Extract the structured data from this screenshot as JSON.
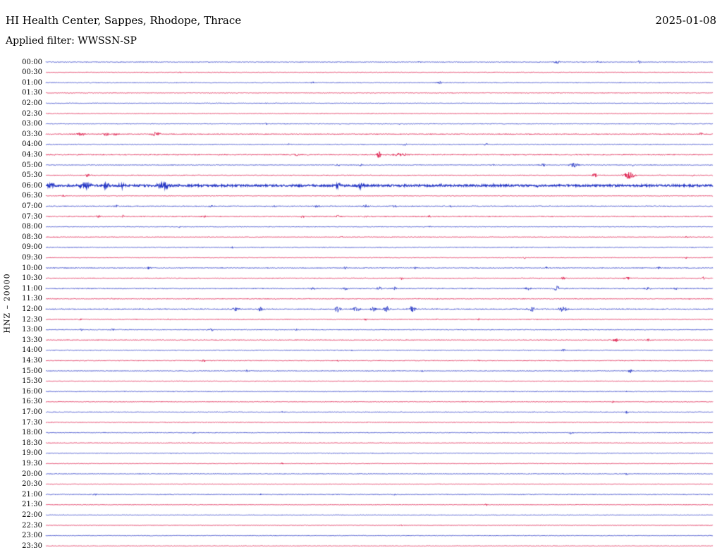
{
  "header": {
    "title": "HI Health Center, Sappes, Rhodope, Thrace",
    "date": "2025-01-08",
    "filter": "Applied filter: WWSSN-SP"
  },
  "axis": {
    "channel_label": "HNZ – 20000"
  },
  "chart_data": {
    "type": "line",
    "title": "HI Health Center, Sappes, Rhodope, Thrace",
    "subtitle": "Applied filter: WWSSN-SP",
    "date": "2025-01-08",
    "channel": "HNZ – 20000",
    "row_duration_minutes": 30,
    "rows_start": "00:00",
    "rows_end": "23:30",
    "legend": "alternating trace colors per half-hour line",
    "colors": {
      "blue": "#2334c4",
      "red": "#dc1243"
    },
    "rows": [
      {
        "label": "00:00",
        "color": "blue",
        "noise": 0.5,
        "events": [
          [
            0.766,
            3.0,
            0.004
          ],
          [
            0.829,
            2.2,
            0.003
          ],
          [
            0.89,
            2.2,
            0.003
          ],
          [
            0.56,
            1.2,
            0.002
          ]
        ]
      },
      {
        "label": "00:30",
        "color": "red",
        "noise": 0.45,
        "events": [
          [
            0.2,
            1.3,
            0.002
          ]
        ]
      },
      {
        "label": "01:00",
        "color": "blue",
        "noise": 0.5,
        "events": [
          [
            0.59,
            1.8,
            0.003
          ],
          [
            0.4,
            1.2,
            0.002
          ]
        ]
      },
      {
        "label": "01:30",
        "color": "red",
        "noise": 0.45,
        "events": []
      },
      {
        "label": "02:00",
        "color": "blue",
        "noise": 0.45,
        "events": [
          [
            0.33,
            1.0,
            0.002
          ]
        ]
      },
      {
        "label": "02:30",
        "color": "red",
        "noise": 0.45,
        "events": []
      },
      {
        "label": "03:00",
        "color": "blue",
        "noise": 0.5,
        "events": [
          [
            0.33,
            1.5,
            0.002
          ],
          [
            0.53,
            1.3,
            0.002
          ]
        ]
      },
      {
        "label": "03:30",
        "color": "red",
        "noise": 0.6,
        "events": [
          [
            0.053,
            2.0,
            0.008
          ],
          [
            0.09,
            2.2,
            0.006
          ],
          [
            0.105,
            2.0,
            0.005
          ],
          [
            0.165,
            3.0,
            0.007
          ],
          [
            0.982,
            2.5,
            0.003
          ]
        ]
      },
      {
        "label": "04:00",
        "color": "blue",
        "noise": 0.5,
        "events": [
          [
            0.364,
            1.4,
            0.003
          ],
          [
            0.538,
            2.0,
            0.003
          ],
          [
            0.66,
            1.5,
            0.003
          ]
        ]
      },
      {
        "label": "04:30",
        "color": "red",
        "noise": 0.7,
        "events": [
          [
            0.375,
            1.8,
            0.004
          ],
          [
            0.5,
            7.0,
            0.003
          ],
          [
            0.53,
            2.0,
            0.015
          ]
        ]
      },
      {
        "label": "05:00",
        "color": "blue",
        "noise": 0.5,
        "events": [
          [
            0.438,
            1.8,
            0.003
          ],
          [
            0.472,
            1.8,
            0.003
          ],
          [
            0.67,
            1.5,
            0.003
          ],
          [
            0.744,
            3.2,
            0.005
          ],
          [
            0.792,
            3.5,
            0.007
          ],
          [
            0.88,
            1.6,
            0.003
          ]
        ]
      },
      {
        "label": "05:30",
        "color": "red",
        "noise": 0.5,
        "events": [
          [
            0.063,
            2.2,
            0.004
          ],
          [
            0.823,
            3.0,
            0.004
          ],
          [
            0.874,
            5.0,
            0.008
          ],
          [
            0.97,
            1.4,
            0.002
          ]
        ]
      },
      {
        "label": "06:00",
        "color": "blue",
        "noise": 1.3,
        "lw": 1.1,
        "events": [
          [
            0.008,
            4.5,
            0.006
          ],
          [
            0.058,
            5.0,
            0.008
          ],
          [
            0.09,
            3.5,
            0.005
          ],
          [
            0.113,
            3.5,
            0.005
          ],
          [
            0.176,
            4.5,
            0.008
          ],
          [
            0.438,
            3.5,
            0.004
          ],
          [
            0.472,
            3.0,
            0.004
          ],
          [
            0.59,
            2.5,
            0.003
          ],
          [
            0.67,
            2.0,
            0.003
          ],
          [
            0.74,
            2.0,
            0.003
          ]
        ]
      },
      {
        "label": "06:30",
        "color": "red",
        "noise": 0.45,
        "events": [
          [
            0.026,
            1.5,
            0.003
          ],
          [
            0.44,
            1.2,
            0.002
          ]
        ]
      },
      {
        "label": "07:00",
        "color": "blue",
        "noise": 0.6,
        "events": [
          [
            0.105,
            1.5,
            0.003
          ],
          [
            0.248,
            1.5,
            0.003
          ],
          [
            0.343,
            1.8,
            0.003
          ],
          [
            0.407,
            2.0,
            0.004
          ],
          [
            0.48,
            2.0,
            0.004
          ],
          [
            0.523,
            1.8,
            0.003
          ],
          [
            0.607,
            1.5,
            0.003
          ]
        ]
      },
      {
        "label": "07:30",
        "color": "red",
        "noise": 0.6,
        "events": [
          [
            0.079,
            2.0,
            0.004
          ],
          [
            0.116,
            1.8,
            0.003
          ],
          [
            0.237,
            1.5,
            0.003
          ],
          [
            0.385,
            1.8,
            0.003
          ],
          [
            0.438,
            2.0,
            0.004
          ],
          [
            0.48,
            1.8,
            0.003
          ],
          [
            0.575,
            1.5,
            0.003
          ]
        ]
      },
      {
        "label": "08:00",
        "color": "blue",
        "noise": 0.5,
        "events": [
          [
            0.2,
            1.2,
            0.002
          ],
          [
            0.575,
            1.3,
            0.002
          ]
        ]
      },
      {
        "label": "08:30",
        "color": "red",
        "noise": 0.45,
        "events": [
          [
            0.443,
            2.0,
            0.002
          ],
          [
            0.96,
            1.4,
            0.002
          ]
        ]
      },
      {
        "label": "09:00",
        "color": "blue",
        "noise": 0.5,
        "events": [
          [
            0.28,
            1.2,
            0.002
          ],
          [
            0.523,
            1.2,
            0.002
          ]
        ]
      },
      {
        "label": "09:30",
        "color": "red",
        "noise": 0.45,
        "events": [
          [
            0.718,
            1.8,
            0.002
          ],
          [
            0.96,
            1.5,
            0.002
          ]
        ]
      },
      {
        "label": "10:00",
        "color": "blue",
        "noise": 0.55,
        "events": [
          [
            0.155,
            2.5,
            0.003
          ],
          [
            0.449,
            1.5,
            0.003
          ],
          [
            0.554,
            1.5,
            0.003
          ],
          [
            0.75,
            1.5,
            0.002
          ],
          [
            0.919,
            1.8,
            0.002
          ]
        ]
      },
      {
        "label": "10:30",
        "color": "red",
        "noise": 0.5,
        "events": [
          [
            0.533,
            1.8,
            0.003
          ],
          [
            0.776,
            2.2,
            0.004
          ],
          [
            0.871,
            2.2,
            0.004
          ],
          [
            0.987,
            2.0,
            0.003
          ]
        ]
      },
      {
        "label": "11:00",
        "color": "blue",
        "noise": 0.6,
        "events": [
          [
            0.401,
            2.2,
            0.004
          ],
          [
            0.449,
            2.0,
            0.003
          ],
          [
            0.5,
            2.8,
            0.004
          ],
          [
            0.523,
            2.5,
            0.003
          ],
          [
            0.723,
            2.5,
            0.004
          ],
          [
            0.766,
            3.5,
            0.005
          ],
          [
            0.903,
            2.5,
            0.004
          ],
          [
            0.945,
            2.0,
            0.003
          ]
        ]
      },
      {
        "label": "11:30",
        "color": "red",
        "noise": 0.5,
        "events": [
          [
            0.1,
            1.5,
            0.003
          ],
          [
            0.343,
            1.4,
            0.002
          ],
          [
            0.586,
            1.4,
            0.002
          ],
          [
            0.966,
            1.4,
            0.002
          ]
        ]
      },
      {
        "label": "12:00",
        "color": "blue",
        "noise": 0.7,
        "events": [
          [
            0.285,
            3.2,
            0.005
          ],
          [
            0.322,
            2.8,
            0.004
          ],
          [
            0.438,
            4.0,
            0.005
          ],
          [
            0.465,
            4.0,
            0.005
          ],
          [
            0.491,
            3.5,
            0.004
          ],
          [
            0.512,
            4.0,
            0.005
          ],
          [
            0.549,
            3.8,
            0.005
          ],
          [
            0.729,
            3.5,
            0.005
          ],
          [
            0.776,
            4.2,
            0.006
          ]
        ]
      },
      {
        "label": "12:30",
        "color": "red",
        "noise": 0.5,
        "events": [
          [
            0.053,
            1.5,
            0.003
          ],
          [
            0.185,
            1.4,
            0.002
          ],
          [
            0.48,
            1.8,
            0.003
          ],
          [
            0.586,
            1.5,
            0.002
          ],
          [
            0.649,
            1.4,
            0.002
          ]
        ]
      },
      {
        "label": "13:00",
        "color": "blue",
        "noise": 0.55,
        "events": [
          [
            0.053,
            2.0,
            0.003
          ],
          [
            0.1,
            1.8,
            0.003
          ],
          [
            0.248,
            1.8,
            0.003
          ],
          [
            0.375,
            1.4,
            0.002
          ]
        ]
      },
      {
        "label": "13:30",
        "color": "red",
        "noise": 0.5,
        "events": [
          [
            0.855,
            2.2,
            0.006
          ],
          [
            0.903,
            2.0,
            0.004
          ]
        ]
      },
      {
        "label": "14:00",
        "color": "blue",
        "noise": 0.5,
        "events": [
          [
            0.459,
            1.4,
            0.002
          ],
          [
            0.776,
            1.8,
            0.003
          ]
        ]
      },
      {
        "label": "14:30",
        "color": "red",
        "noise": 0.5,
        "events": [
          [
            0.237,
            2.0,
            0.003
          ],
          [
            0.438,
            1.5,
            0.002
          ],
          [
            0.649,
            1.5,
            0.002
          ]
        ]
      },
      {
        "label": "15:00",
        "color": "blue",
        "noise": 0.5,
        "events": [
          [
            0.301,
            1.4,
            0.002
          ],
          [
            0.565,
            1.4,
            0.002
          ],
          [
            0.876,
            3.0,
            0.003
          ]
        ]
      },
      {
        "label": "15:30",
        "color": "red",
        "noise": 0.45,
        "events": []
      },
      {
        "label": "16:00",
        "color": "blue",
        "noise": 0.5,
        "events": [
          [
            0.87,
            1.2,
            0.002
          ]
        ]
      },
      {
        "label": "16:30",
        "color": "red",
        "noise": 0.45,
        "events": [
          [
            0.85,
            1.4,
            0.002
          ]
        ]
      },
      {
        "label": "17:00",
        "color": "blue",
        "noise": 0.5,
        "events": [
          [
            0.354,
            1.4,
            0.002
          ],
          [
            0.871,
            1.8,
            0.003
          ]
        ]
      },
      {
        "label": "17:30",
        "color": "red",
        "noise": 0.45,
        "events": []
      },
      {
        "label": "18:00",
        "color": "blue",
        "noise": 0.5,
        "events": [
          [
            0.222,
            1.8,
            0.002
          ],
          [
            0.787,
            2.0,
            0.003
          ]
        ]
      },
      {
        "label": "18:30",
        "color": "red",
        "noise": 0.4,
        "events": []
      },
      {
        "label": "19:00",
        "color": "blue",
        "noise": 0.45,
        "events": []
      },
      {
        "label": "19:30",
        "color": "red",
        "noise": 0.4,
        "events": [
          [
            0.354,
            1.2,
            0.002
          ]
        ]
      },
      {
        "label": "20:00",
        "color": "blue",
        "noise": 0.45,
        "events": [
          [
            0.871,
            1.5,
            0.002
          ]
        ]
      },
      {
        "label": "20:30",
        "color": "red",
        "noise": 0.4,
        "events": []
      },
      {
        "label": "21:00",
        "color": "blue",
        "noise": 0.5,
        "events": [
          [
            0.074,
            1.8,
            0.003
          ],
          [
            0.322,
            1.2,
            0.002
          ],
          [
            0.523,
            1.2,
            0.002
          ]
        ]
      },
      {
        "label": "21:30",
        "color": "red",
        "noise": 0.4,
        "events": [
          [
            0.66,
            1.4,
            0.002
          ]
        ]
      },
      {
        "label": "22:00",
        "color": "blue",
        "noise": 0.45,
        "events": []
      },
      {
        "label": "22:30",
        "color": "red",
        "noise": 0.4,
        "events": [
          [
            0.533,
            1.4,
            0.002
          ]
        ]
      },
      {
        "label": "23:00",
        "color": "blue",
        "noise": 0.45,
        "events": []
      },
      {
        "label": "23:30",
        "color": "red",
        "noise": 0.4,
        "events": []
      }
    ]
  }
}
